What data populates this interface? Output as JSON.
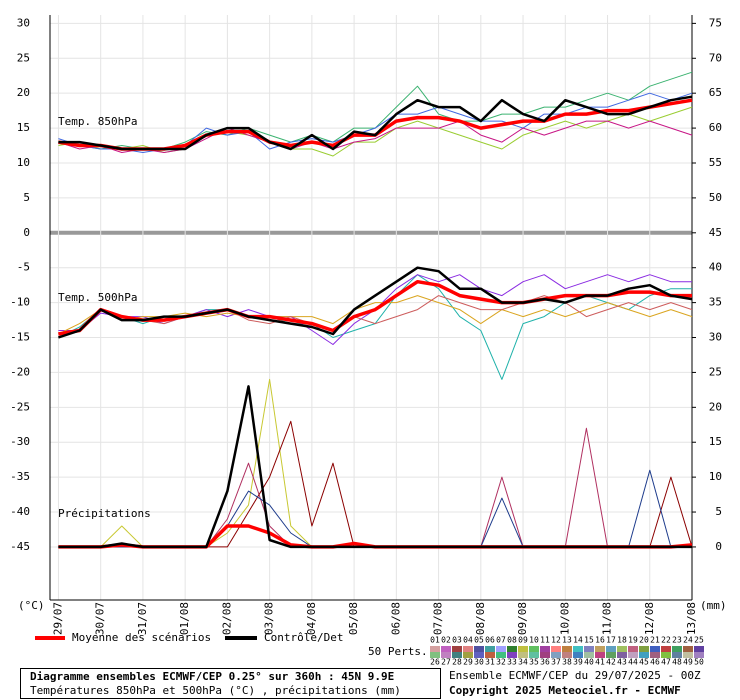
{
  "chart_data": {
    "type": "line",
    "x": [
      0,
      0.5,
      1,
      1.5,
      2,
      2.5,
      3,
      3.5,
      4,
      4.5,
      5,
      5.5,
      6,
      6.5,
      7,
      7.5,
      8,
      8.5,
      9,
      9.5,
      10,
      10.5,
      11,
      11.5,
      12,
      12.5,
      13,
      13.5,
      14,
      14.5,
      15
    ],
    "xlim": [
      -0.2,
      15
    ],
    "xticks": [
      {
        "value": 0,
        "label": "29/07"
      },
      {
        "value": 1,
        "label": "30/07"
      },
      {
        "value": 2,
        "label": "31/07"
      },
      {
        "value": 3,
        "label": "01/08"
      },
      {
        "value": 4,
        "label": "02/08"
      },
      {
        "value": 5,
        "label": "03/08"
      },
      {
        "value": 6,
        "label": "04/08"
      },
      {
        "value": 7,
        "label": "05/08"
      },
      {
        "value": 8,
        "label": "06/08"
      },
      {
        "value": 9,
        "label": "07/08"
      },
      {
        "value": 10,
        "label": "08/08"
      },
      {
        "value": 11,
        "label": "09/08"
      },
      {
        "value": 12,
        "label": "10/08"
      },
      {
        "value": 13,
        "label": "11/08"
      },
      {
        "value": 14,
        "label": "12/08"
      },
      {
        "value": 15,
        "label": "13/08"
      }
    ],
    "ylim": [
      -52.6,
      31.2
    ],
    "yticks": [
      30,
      25,
      20,
      15,
      10,
      5,
      0,
      -5,
      -10,
      -15,
      -20,
      -25,
      -30,
      -35,
      -40,
      -45
    ],
    "y2lim": [
      -7.6,
      76.2
    ],
    "y2ticks": [
      75,
      70,
      65,
      60,
      55,
      50,
      45,
      40,
      35,
      30,
      25,
      20,
      15,
      10,
      5,
      0
    ],
    "y_unit": "(°C)",
    "y2_unit": "(mm)",
    "grid": true,
    "panels": [
      {
        "label": "Temp. 850hPa",
        "axis": "y",
        "mean": {
          "color": "#ff0000",
          "values": [
            13,
            12.5,
            12.5,
            12,
            12,
            12,
            12.5,
            14,
            14.5,
            14.5,
            13,
            12.5,
            13,
            12.5,
            14,
            14,
            16,
            16.5,
            16.5,
            16,
            15,
            15.5,
            16,
            16,
            17,
            17,
            17.5,
            17.5,
            18,
            18.5,
            19
          ]
        },
        "control": {
          "color": "#000000",
          "values": [
            13,
            13,
            12.5,
            12,
            12,
            12,
            12,
            14,
            15,
            15,
            13,
            12,
            14,
            12,
            14.5,
            14,
            17,
            19,
            18,
            18,
            16,
            19,
            17,
            16,
            19,
            18,
            17,
            17,
            18,
            19,
            19.5
          ]
        },
        "members": [
          {
            "color": "#3cb371",
            "values": [
              13,
              12.5,
              12,
              12.5,
              12,
              12,
              13,
              14.5,
              14,
              15,
              14,
              13,
              14,
              13,
              15,
              15,
              18,
              21,
              17,
              16,
              16,
              17,
              17,
              18,
              18,
              19,
              20,
              19,
              21,
              22,
              23
            ]
          },
          {
            "color": "#9acd32",
            "values": [
              12.5,
              13,
              12,
              12,
              12.5,
              11.5,
              12,
              14,
              14.5,
              14,
              13,
              12,
              12,
              11,
              13,
              13,
              15,
              16,
              15,
              14,
              13,
              12,
              14,
              15,
              16,
              15,
              16,
              17,
              16,
              17,
              18
            ]
          },
          {
            "color": "#4169e1",
            "values": [
              13.5,
              12.5,
              12,
              12,
              11.5,
              12,
              12.5,
              15,
              14,
              14.5,
              12,
              13,
              13.5,
              13,
              14,
              15,
              17,
              17,
              18,
              17,
              16,
              16,
              15,
              17,
              17,
              18,
              18,
              19,
              20,
              19,
              20
            ]
          },
          {
            "color": "#c71585",
            "values": [
              13,
              12,
              12.5,
              11.5,
              12,
              11.5,
              12,
              13.5,
              15,
              14,
              13,
              12,
              13,
              12,
              13,
              13.5,
              15,
              15,
              15,
              16,
              14,
              13,
              15,
              14,
              15,
              16,
              16,
              15,
              16,
              15,
              14
            ]
          }
        ]
      },
      {
        "label": "Temp. 500hPa",
        "axis": "y",
        "mean": {
          "color": "#ff0000",
          "values": [
            -14.5,
            -14,
            -11,
            -12,
            -12.5,
            -12.5,
            -12,
            -11.5,
            -11,
            -12,
            -12,
            -12.5,
            -13,
            -14,
            -12,
            -11,
            -9,
            -7,
            -7.5,
            -9,
            -9.5,
            -10,
            -10,
            -9.5,
            -9,
            -9,
            -9,
            -8.5,
            -8.5,
            -9,
            -9
          ]
        },
        "control": {
          "color": "#000000",
          "values": [
            -15,
            -14,
            -11,
            -12.5,
            -12.5,
            -12,
            -12,
            -11.5,
            -11,
            -12,
            -12.5,
            -13,
            -13.5,
            -14.5,
            -11,
            -9,
            -7,
            -5,
            -5.5,
            -8,
            -8,
            -10,
            -10,
            -9.5,
            -10,
            -9,
            -9,
            -8,
            -7.5,
            -9,
            -9.5
          ]
        },
        "members": [
          {
            "color": "#20b2aa",
            "values": [
              -15,
              -13.5,
              -11,
              -12,
              -13,
              -12,
              -12,
              -11,
              -11,
              -12,
              -12,
              -13,
              -13,
              -15,
              -14,
              -13,
              -9,
              -6,
              -8,
              -12,
              -14,
              -21,
              -13,
              -12,
              -10,
              -9,
              -10,
              -11,
              -9,
              -8,
              -8
            ]
          },
          {
            "color": "#8a2be2",
            "values": [
              -14,
              -14,
              -11.5,
              -12,
              -12,
              -13,
              -12,
              -11,
              -12,
              -11,
              -12,
              -12,
              -14,
              -16,
              -13,
              -11,
              -8,
              -6,
              -7,
              -6,
              -8,
              -9,
              -7,
              -6,
              -8,
              -7,
              -6,
              -7,
              -6,
              -7,
              -7
            ]
          },
          {
            "color": "#daa520",
            "values": [
              -14.5,
              -13,
              -11,
              -12.5,
              -12,
              -12,
              -11.5,
              -12,
              -11.5,
              -12,
              -12,
              -12,
              -12,
              -13,
              -11,
              -10,
              -10,
              -9,
              -10,
              -11,
              -13,
              -11,
              -12,
              -11,
              -12,
              -11,
              -10,
              -11,
              -12,
              -11,
              -12
            ]
          },
          {
            "color": "#cd5c5c",
            "values": [
              -15,
              -14,
              -11,
              -12,
              -12.5,
              -13,
              -12,
              -11.5,
              -11,
              -12.5,
              -13,
              -12,
              -13,
              -14,
              -12,
              -13,
              -12,
              -11,
              -9,
              -10,
              -11,
              -11,
              -10,
              -9,
              -10,
              -12,
              -11,
              -10,
              -11,
              -10,
              -11
            ]
          }
        ]
      },
      {
        "label": "Précipitations",
        "axis": "y2",
        "mean": {
          "color": "#ff0000",
          "values": [
            0,
            0,
            0,
            0.3,
            0,
            0,
            0,
            0,
            3,
            3,
            2,
            0.3,
            0,
            0,
            0.5,
            0,
            0,
            0,
            0,
            0,
            0,
            0,
            0,
            0,
            0,
            0,
            0,
            0,
            0,
            0,
            0.3
          ]
        },
        "control": {
          "color": "#000000",
          "values": [
            0,
            0,
            0,
            0.5,
            0,
            0,
            0,
            0,
            8,
            23,
            1,
            0,
            0,
            0,
            0,
            0,
            0,
            0,
            0,
            0,
            0,
            0,
            0,
            0,
            0,
            0,
            0,
            0,
            0,
            0,
            0
          ]
        },
        "members": [
          {
            "color": "#c8c832",
            "values": [
              0,
              0,
              0,
              3,
              0,
              0,
              0,
              0,
              2,
              6,
              24,
              3,
              0,
              0,
              0,
              0,
              0,
              0,
              0,
              0,
              0,
              0,
              0,
              0,
              0,
              0,
              0,
              0,
              0,
              0,
              0
            ]
          },
          {
            "color": "#b03060",
            "values": [
              0,
              0,
              0,
              0,
              0,
              0,
              0,
              0,
              4,
              12,
              3,
              0,
              0,
              0,
              0,
              0,
              0,
              0,
              0,
              0,
              0,
              10,
              0,
              0,
              0,
              17,
              0,
              0,
              0,
              0,
              0
            ]
          },
          {
            "color": "#8b0000",
            "values": [
              0,
              0,
              0,
              0,
              0,
              0,
              0,
              0,
              0,
              5,
              10,
              18,
              3,
              12,
              0,
              0,
              0,
              0,
              0,
              0,
              0,
              0,
              0,
              0,
              0,
              0,
              0,
              0,
              0,
              10,
              0
            ]
          },
          {
            "color": "#1e3c8c",
            "values": [
              0,
              0,
              0,
              0,
              0,
              0,
              0,
              0,
              3,
              8,
              6,
              2,
              0,
              0,
              0,
              0,
              0,
              0,
              0,
              0,
              0,
              7,
              0,
              0,
              0,
              0,
              0,
              0,
              11,
              0,
              0
            ]
          }
        ]
      }
    ],
    "legend": {
      "mean": "Moyenne des scénarios",
      "control": "Contrôle/Det",
      "members": "50 Perts.",
      "member_labels": [
        "01",
        "02",
        "03",
        "04",
        "05",
        "06",
        "07",
        "08",
        "09",
        "10",
        "11",
        "12",
        "13",
        "14",
        "15",
        "16",
        "17",
        "18",
        "19",
        "20",
        "21",
        "22",
        "23",
        "24",
        "25",
        "26",
        "27",
        "28",
        "29",
        "30",
        "31",
        "32",
        "33",
        "34",
        "35",
        "36",
        "37",
        "38",
        "39",
        "40",
        "41",
        "42",
        "43",
        "44",
        "45",
        "46",
        "47",
        "48",
        "49",
        "50"
      ],
      "member_colors": [
        "#d4a0a0",
        "#c060c0",
        "#a04040",
        "#e08080",
        "#5050a0",
        "#40a0a0",
        "#a0a0ff",
        "#308030",
        "#c0c040",
        "#60c060",
        "#a040a0",
        "#ff8080",
        "#c08040",
        "#40c0c0",
        "#8080c0",
        "#c0a060",
        "#60a0c0",
        "#a0c060",
        "#c06080",
        "#80a040",
        "#4060c0",
        "#c04040",
        "#40a060",
        "#a06040",
        "#6040a0",
        "#80c080",
        "#c080c0",
        "#408080",
        "#a0a040",
        "#6060c0",
        "#c06040",
        "#40c080",
        "#8040c0",
        "#c0c080",
        "#60c0a0",
        "#a04080",
        "#80a0c0",
        "#c08080",
        "#4080c0",
        "#a0c0a0",
        "#c04080",
        "#60a060",
        "#8060a0",
        "#c0a0c0",
        "#40a0c0",
        "#a06080",
        "#80c040",
        "#6080a0",
        "#c0c0a0",
        "#a080c0"
      ]
    }
  },
  "footer": {
    "title": "Diagramme ensembles ECMWF/CEP 0.25° sur 360h : 45N 9.9E",
    "subtitle": "Températures 850hPa et 500hPa (°C) , précipitations (mm)",
    "run": "Ensemble ECMWF/CEP du 29/07/2025 - 00Z",
    "copyright": "Copyright 2025 Meteociel.fr - ECMWF"
  }
}
